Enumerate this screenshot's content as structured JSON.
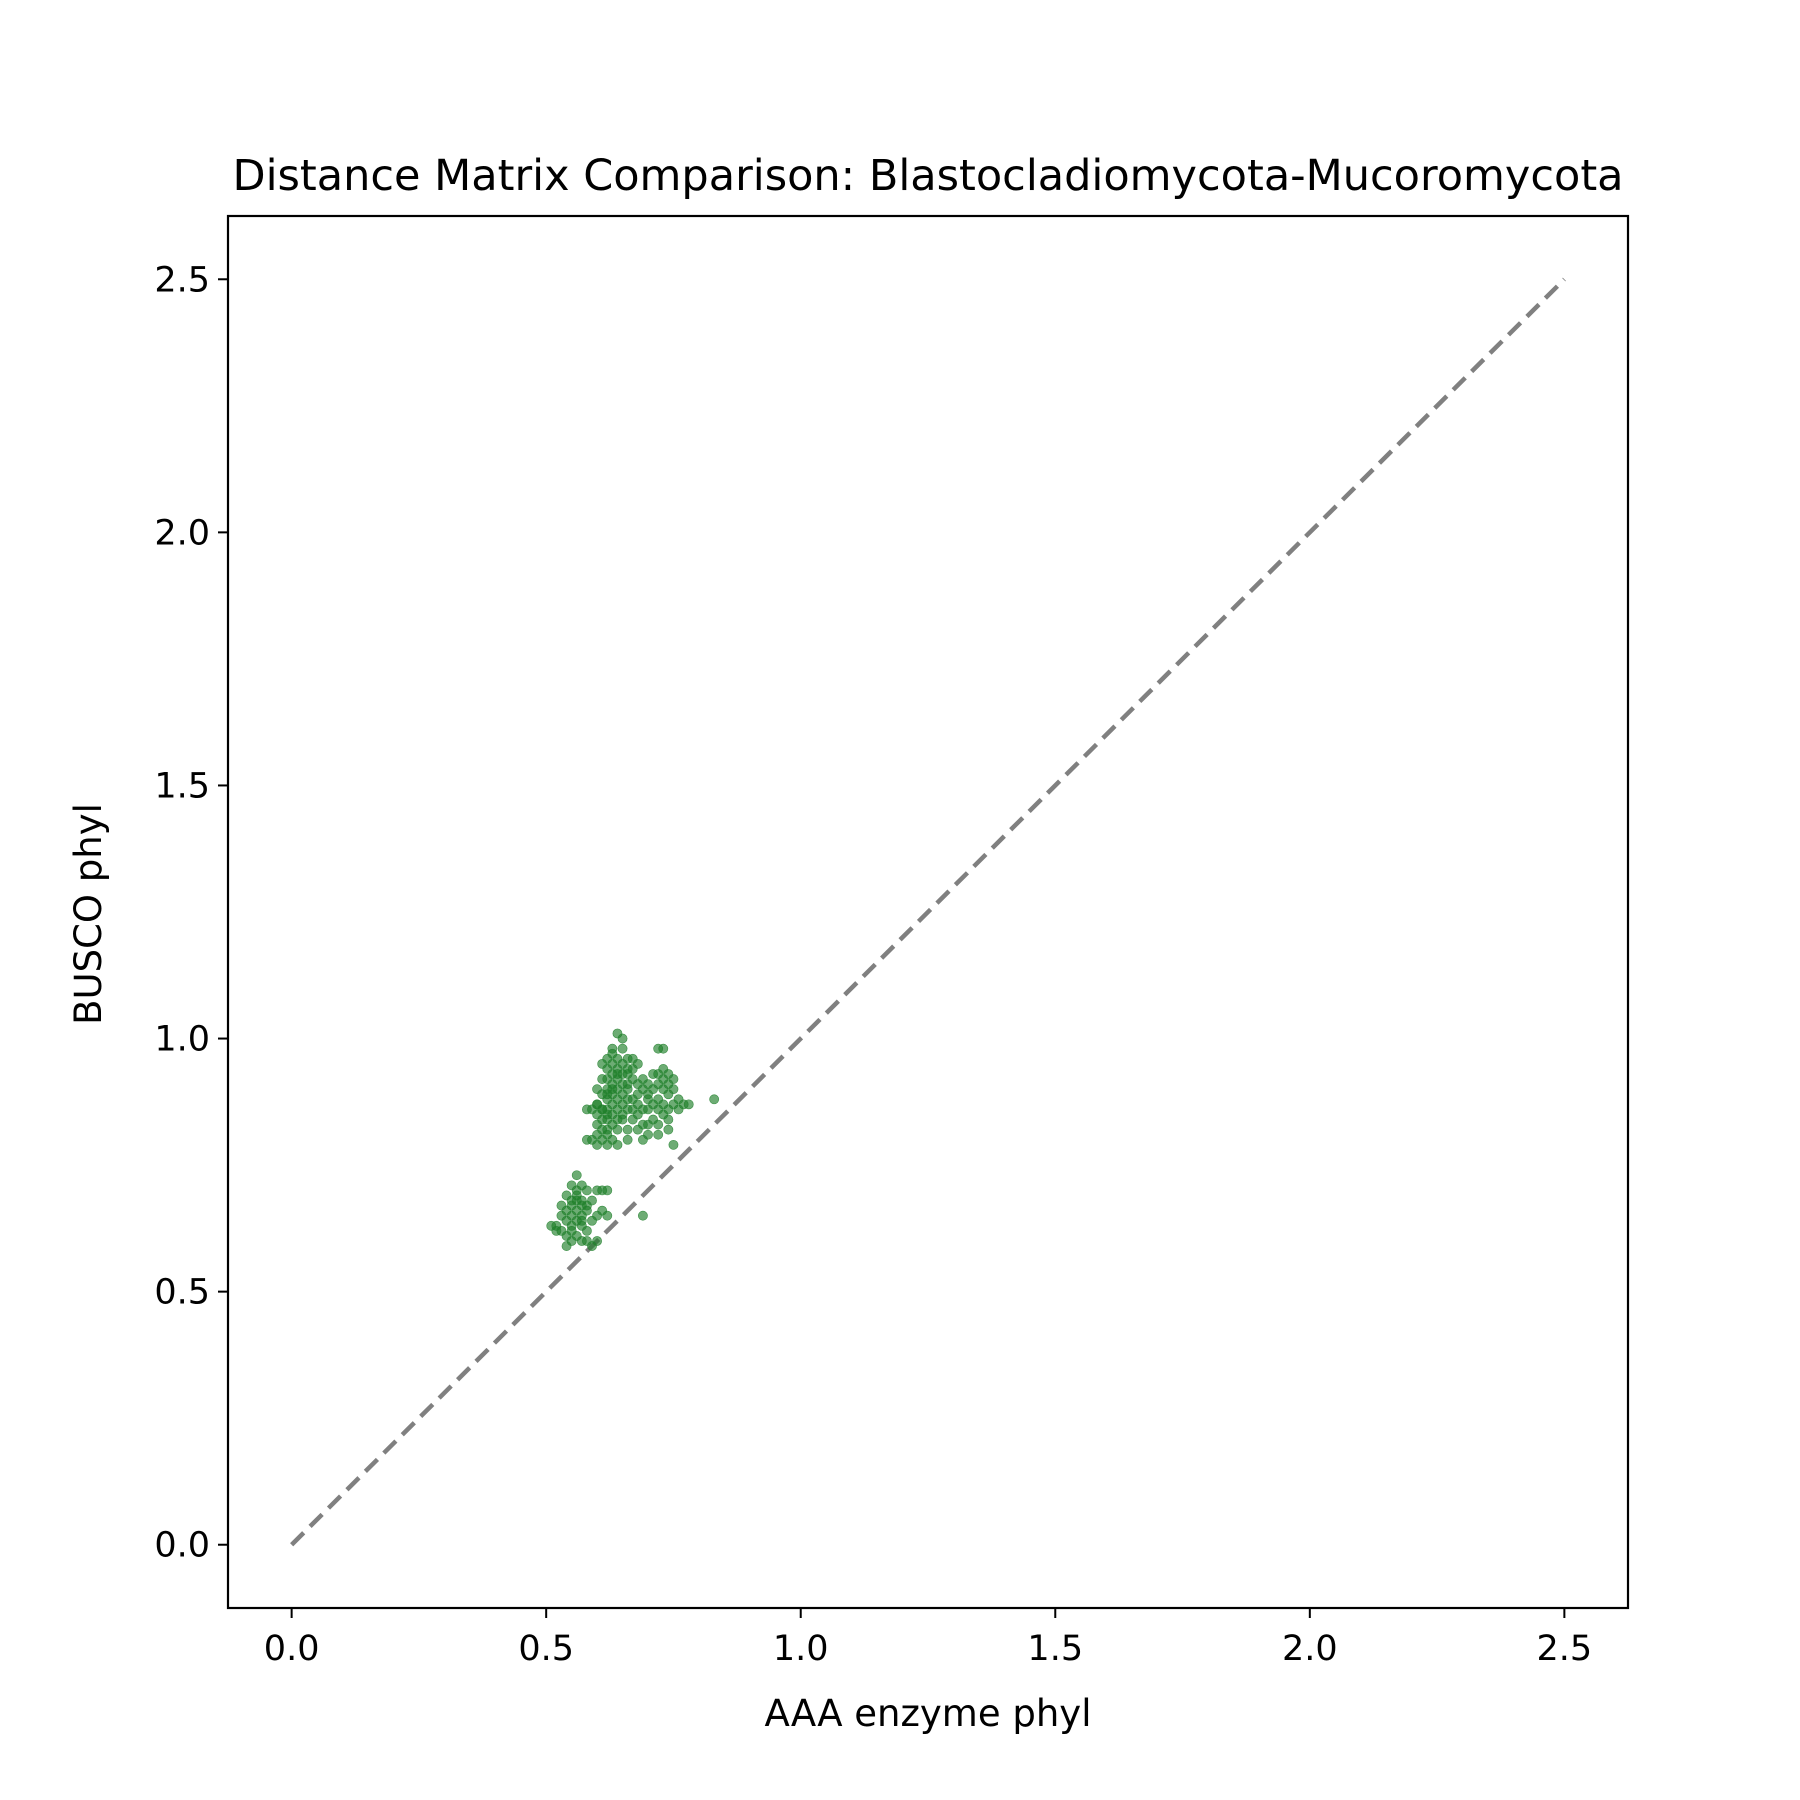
{
  "chart_data": {
    "type": "scatter",
    "title": "Distance Matrix Comparison: Blastocladiomycota-Mucoromycota",
    "xlabel": "AAA enzyme phyl",
    "ylabel": "BUSCO phyl",
    "xlim": [
      -0.125,
      2.625
    ],
    "ylim": [
      -0.125,
      2.625
    ],
    "xticks": [
      "0.0",
      "0.5",
      "1.0",
      "1.5",
      "2.0",
      "2.5"
    ],
    "yticks": [
      "0.0",
      "0.5",
      "1.0",
      "1.5",
      "2.0",
      "2.5"
    ],
    "grid": false,
    "legend": "none",
    "point_color": "#1f7f2a",
    "reference_line": {
      "x": [
        0.0,
        2.5
      ],
      "y": [
        0.0,
        2.5
      ],
      "color": "#808080",
      "style": "dashed"
    },
    "series": [
      {
        "points": [
          [
            0.64,
            1.01
          ],
          [
            0.65,
            1.0
          ],
          [
            0.63,
            0.97
          ],
          [
            0.62,
            0.96
          ],
          [
            0.64,
            0.96
          ],
          [
            0.66,
            0.96
          ],
          [
            0.61,
            0.95
          ],
          [
            0.63,
            0.95
          ],
          [
            0.65,
            0.95
          ],
          [
            0.67,
            0.94
          ],
          [
            0.62,
            0.94
          ],
          [
            0.64,
            0.94
          ],
          [
            0.63,
            0.93
          ],
          [
            0.65,
            0.93
          ],
          [
            0.66,
            0.93
          ],
          [
            0.62,
            0.92
          ],
          [
            0.64,
            0.92
          ],
          [
            0.61,
            0.92
          ],
          [
            0.63,
            0.91
          ],
          [
            0.65,
            0.91
          ],
          [
            0.66,
            0.91
          ],
          [
            0.62,
            0.9
          ],
          [
            0.64,
            0.9
          ],
          [
            0.6,
            0.9
          ],
          [
            0.63,
            0.89
          ],
          [
            0.65,
            0.89
          ],
          [
            0.61,
            0.89
          ],
          [
            0.62,
            0.88
          ],
          [
            0.64,
            0.88
          ],
          [
            0.66,
            0.88
          ],
          [
            0.6,
            0.87
          ],
          [
            0.63,
            0.87
          ],
          [
            0.65,
            0.87
          ],
          [
            0.59,
            0.86
          ],
          [
            0.61,
            0.86
          ],
          [
            0.62,
            0.86
          ],
          [
            0.64,
            0.86
          ],
          [
            0.66,
            0.86
          ],
          [
            0.58,
            0.86
          ],
          [
            0.6,
            0.85
          ],
          [
            0.62,
            0.85
          ],
          [
            0.63,
            0.85
          ],
          [
            0.65,
            0.85
          ],
          [
            0.61,
            0.84
          ],
          [
            0.62,
            0.84
          ],
          [
            0.64,
            0.84
          ],
          [
            0.6,
            0.83
          ],
          [
            0.63,
            0.83
          ],
          [
            0.61,
            0.82
          ],
          [
            0.62,
            0.82
          ],
          [
            0.64,
            0.82
          ],
          [
            0.6,
            0.81
          ],
          [
            0.62,
            0.81
          ],
          [
            0.59,
            0.8
          ],
          [
            0.61,
            0.8
          ],
          [
            0.63,
            0.8
          ],
          [
            0.58,
            0.8
          ],
          [
            0.6,
            0.79
          ],
          [
            0.62,
            0.79
          ],
          [
            0.64,
            0.79
          ],
          [
            0.66,
            0.8
          ],
          [
            0.63,
            0.98
          ],
          [
            0.65,
            0.98
          ],
          [
            0.67,
            0.92
          ],
          [
            0.68,
            0.91
          ],
          [
            0.66,
            0.9
          ],
          [
            0.67,
            0.88
          ],
          [
            0.68,
            0.87
          ],
          [
            0.69,
            0.9
          ],
          [
            0.7,
            0.89
          ],
          [
            0.7,
            0.88
          ],
          [
            0.71,
            0.9
          ],
          [
            0.72,
            0.88
          ],
          [
            0.69,
            0.86
          ],
          [
            0.7,
            0.86
          ],
          [
            0.71,
            0.87
          ],
          [
            0.72,
            0.86
          ],
          [
            0.73,
            0.87
          ],
          [
            0.74,
            0.86
          ],
          [
            0.75,
            0.87
          ],
          [
            0.73,
            0.85
          ],
          [
            0.71,
            0.84
          ],
          [
            0.7,
            0.83
          ],
          [
            0.72,
            0.83
          ],
          [
            0.74,
            0.84
          ],
          [
            0.73,
            0.98
          ],
          [
            0.72,
            0.98
          ],
          [
            0.73,
            0.94
          ],
          [
            0.74,
            0.93
          ],
          [
            0.72,
            0.93
          ],
          [
            0.73,
            0.92
          ],
          [
            0.75,
            0.92
          ],
          [
            0.74,
            0.91
          ],
          [
            0.72,
            0.91
          ],
          [
            0.73,
            0.9
          ],
          [
            0.75,
            0.9
          ],
          [
            0.74,
            0.89
          ],
          [
            0.76,
            0.88
          ],
          [
            0.77,
            0.87
          ],
          [
            0.76,
            0.86
          ],
          [
            0.78,
            0.87
          ],
          [
            0.68,
            0.85
          ],
          [
            0.67,
            0.84
          ],
          [
            0.69,
            0.83
          ],
          [
            0.68,
            0.82
          ],
          [
            0.7,
            0.81
          ],
          [
            0.69,
            0.8
          ],
          [
            0.75,
            0.79
          ],
          [
            0.72,
            0.81
          ],
          [
            0.74,
            0.82
          ],
          [
            0.83,
            0.88
          ],
          [
            0.67,
            0.86
          ],
          [
            0.68,
            0.89
          ],
          [
            0.69,
            0.92
          ],
          [
            0.7,
            0.91
          ],
          [
            0.71,
            0.93
          ],
          [
            0.66,
            0.94
          ],
          [
            0.68,
            0.95
          ],
          [
            0.67,
            0.96
          ],
          [
            0.61,
            0.86
          ],
          [
            0.6,
            0.87
          ],
          [
            0.63,
            0.9
          ],
          [
            0.64,
            0.93
          ],
          [
            0.62,
            0.89
          ],
          [
            0.65,
            0.84
          ],
          [
            0.66,
            0.82
          ],
          [
            0.56,
            0.73
          ],
          [
            0.57,
            0.71
          ],
          [
            0.55,
            0.71
          ],
          [
            0.56,
            0.7
          ],
          [
            0.58,
            0.7
          ],
          [
            0.54,
            0.69
          ],
          [
            0.56,
            0.69
          ],
          [
            0.57,
            0.68
          ],
          [
            0.55,
            0.68
          ],
          [
            0.53,
            0.67
          ],
          [
            0.55,
            0.67
          ],
          [
            0.57,
            0.67
          ],
          [
            0.54,
            0.66
          ],
          [
            0.56,
            0.66
          ],
          [
            0.58,
            0.66
          ],
          [
            0.55,
            0.65
          ],
          [
            0.57,
            0.65
          ],
          [
            0.53,
            0.65
          ],
          [
            0.54,
            0.64
          ],
          [
            0.56,
            0.64
          ],
          [
            0.55,
            0.63
          ],
          [
            0.57,
            0.63
          ],
          [
            0.52,
            0.63
          ],
          [
            0.53,
            0.62
          ],
          [
            0.55,
            0.62
          ],
          [
            0.54,
            0.61
          ],
          [
            0.56,
            0.61
          ],
          [
            0.55,
            0.6
          ],
          [
            0.57,
            0.6
          ],
          [
            0.58,
            0.6
          ],
          [
            0.59,
            0.59
          ],
          [
            0.54,
            0.59
          ],
          [
            0.61,
            0.7
          ],
          [
            0.6,
            0.7
          ],
          [
            0.62,
            0.7
          ],
          [
            0.61,
            0.66
          ],
          [
            0.62,
            0.65
          ],
          [
            0.6,
            0.65
          ],
          [
            0.59,
            0.68
          ],
          [
            0.58,
            0.67
          ],
          [
            0.69,
            0.65
          ],
          [
            0.6,
            0.6
          ],
          [
            0.51,
            0.63
          ],
          [
            0.52,
            0.62
          ],
          [
            0.56,
            0.68
          ],
          [
            0.57,
            0.64
          ],
          [
            0.58,
            0.62
          ],
          [
            0.59,
            0.64
          ]
        ]
      }
    ]
  }
}
